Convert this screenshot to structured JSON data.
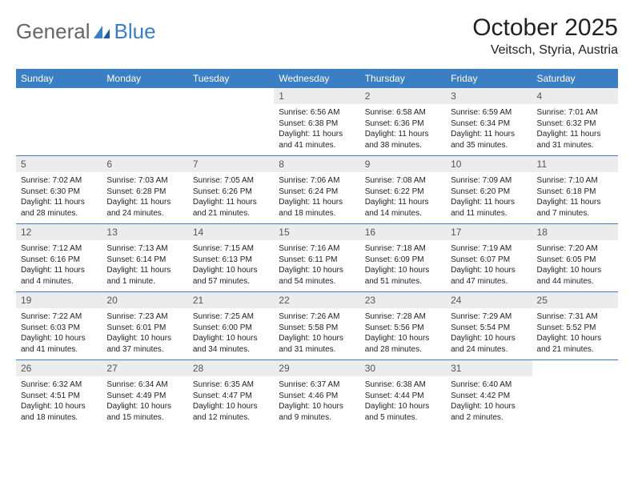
{
  "logo": {
    "text1": "General",
    "text2": "Blue"
  },
  "title": "October 2025",
  "location": "Veitsch, Styria, Austria",
  "colors": {
    "header_bg": "#3a7fc4",
    "header_text": "#ffffff",
    "daynum_bg": "#ececec",
    "border": "#3a7fc4",
    "logo_gray": "#666666",
    "logo_blue": "#3a7fc4"
  },
  "weekdays": [
    "Sunday",
    "Monday",
    "Tuesday",
    "Wednesday",
    "Thursday",
    "Friday",
    "Saturday"
  ],
  "weeks": [
    [
      {
        "day": "",
        "sunrise": "",
        "sunset": "",
        "daylight": ""
      },
      {
        "day": "",
        "sunrise": "",
        "sunset": "",
        "daylight": ""
      },
      {
        "day": "",
        "sunrise": "",
        "sunset": "",
        "daylight": ""
      },
      {
        "day": "1",
        "sunrise": "Sunrise: 6:56 AM",
        "sunset": "Sunset: 6:38 PM",
        "daylight": "Daylight: 11 hours and 41 minutes."
      },
      {
        "day": "2",
        "sunrise": "Sunrise: 6:58 AM",
        "sunset": "Sunset: 6:36 PM",
        "daylight": "Daylight: 11 hours and 38 minutes."
      },
      {
        "day": "3",
        "sunrise": "Sunrise: 6:59 AM",
        "sunset": "Sunset: 6:34 PM",
        "daylight": "Daylight: 11 hours and 35 minutes."
      },
      {
        "day": "4",
        "sunrise": "Sunrise: 7:01 AM",
        "sunset": "Sunset: 6:32 PM",
        "daylight": "Daylight: 11 hours and 31 minutes."
      }
    ],
    [
      {
        "day": "5",
        "sunrise": "Sunrise: 7:02 AM",
        "sunset": "Sunset: 6:30 PM",
        "daylight": "Daylight: 11 hours and 28 minutes."
      },
      {
        "day": "6",
        "sunrise": "Sunrise: 7:03 AM",
        "sunset": "Sunset: 6:28 PM",
        "daylight": "Daylight: 11 hours and 24 minutes."
      },
      {
        "day": "7",
        "sunrise": "Sunrise: 7:05 AM",
        "sunset": "Sunset: 6:26 PM",
        "daylight": "Daylight: 11 hours and 21 minutes."
      },
      {
        "day": "8",
        "sunrise": "Sunrise: 7:06 AM",
        "sunset": "Sunset: 6:24 PM",
        "daylight": "Daylight: 11 hours and 18 minutes."
      },
      {
        "day": "9",
        "sunrise": "Sunrise: 7:08 AM",
        "sunset": "Sunset: 6:22 PM",
        "daylight": "Daylight: 11 hours and 14 minutes."
      },
      {
        "day": "10",
        "sunrise": "Sunrise: 7:09 AM",
        "sunset": "Sunset: 6:20 PM",
        "daylight": "Daylight: 11 hours and 11 minutes."
      },
      {
        "day": "11",
        "sunrise": "Sunrise: 7:10 AM",
        "sunset": "Sunset: 6:18 PM",
        "daylight": "Daylight: 11 hours and 7 minutes."
      }
    ],
    [
      {
        "day": "12",
        "sunrise": "Sunrise: 7:12 AM",
        "sunset": "Sunset: 6:16 PM",
        "daylight": "Daylight: 11 hours and 4 minutes."
      },
      {
        "day": "13",
        "sunrise": "Sunrise: 7:13 AM",
        "sunset": "Sunset: 6:14 PM",
        "daylight": "Daylight: 11 hours and 1 minute."
      },
      {
        "day": "14",
        "sunrise": "Sunrise: 7:15 AM",
        "sunset": "Sunset: 6:13 PM",
        "daylight": "Daylight: 10 hours and 57 minutes."
      },
      {
        "day": "15",
        "sunrise": "Sunrise: 7:16 AM",
        "sunset": "Sunset: 6:11 PM",
        "daylight": "Daylight: 10 hours and 54 minutes."
      },
      {
        "day": "16",
        "sunrise": "Sunrise: 7:18 AM",
        "sunset": "Sunset: 6:09 PM",
        "daylight": "Daylight: 10 hours and 51 minutes."
      },
      {
        "day": "17",
        "sunrise": "Sunrise: 7:19 AM",
        "sunset": "Sunset: 6:07 PM",
        "daylight": "Daylight: 10 hours and 47 minutes."
      },
      {
        "day": "18",
        "sunrise": "Sunrise: 7:20 AM",
        "sunset": "Sunset: 6:05 PM",
        "daylight": "Daylight: 10 hours and 44 minutes."
      }
    ],
    [
      {
        "day": "19",
        "sunrise": "Sunrise: 7:22 AM",
        "sunset": "Sunset: 6:03 PM",
        "daylight": "Daylight: 10 hours and 41 minutes."
      },
      {
        "day": "20",
        "sunrise": "Sunrise: 7:23 AM",
        "sunset": "Sunset: 6:01 PM",
        "daylight": "Daylight: 10 hours and 37 minutes."
      },
      {
        "day": "21",
        "sunrise": "Sunrise: 7:25 AM",
        "sunset": "Sunset: 6:00 PM",
        "daylight": "Daylight: 10 hours and 34 minutes."
      },
      {
        "day": "22",
        "sunrise": "Sunrise: 7:26 AM",
        "sunset": "Sunset: 5:58 PM",
        "daylight": "Daylight: 10 hours and 31 minutes."
      },
      {
        "day": "23",
        "sunrise": "Sunrise: 7:28 AM",
        "sunset": "Sunset: 5:56 PM",
        "daylight": "Daylight: 10 hours and 28 minutes."
      },
      {
        "day": "24",
        "sunrise": "Sunrise: 7:29 AM",
        "sunset": "Sunset: 5:54 PM",
        "daylight": "Daylight: 10 hours and 24 minutes."
      },
      {
        "day": "25",
        "sunrise": "Sunrise: 7:31 AM",
        "sunset": "Sunset: 5:52 PM",
        "daylight": "Daylight: 10 hours and 21 minutes."
      }
    ],
    [
      {
        "day": "26",
        "sunrise": "Sunrise: 6:32 AM",
        "sunset": "Sunset: 4:51 PM",
        "daylight": "Daylight: 10 hours and 18 minutes."
      },
      {
        "day": "27",
        "sunrise": "Sunrise: 6:34 AM",
        "sunset": "Sunset: 4:49 PM",
        "daylight": "Daylight: 10 hours and 15 minutes."
      },
      {
        "day": "28",
        "sunrise": "Sunrise: 6:35 AM",
        "sunset": "Sunset: 4:47 PM",
        "daylight": "Daylight: 10 hours and 12 minutes."
      },
      {
        "day": "29",
        "sunrise": "Sunrise: 6:37 AM",
        "sunset": "Sunset: 4:46 PM",
        "daylight": "Daylight: 10 hours and 9 minutes."
      },
      {
        "day": "30",
        "sunrise": "Sunrise: 6:38 AM",
        "sunset": "Sunset: 4:44 PM",
        "daylight": "Daylight: 10 hours and 5 minutes."
      },
      {
        "day": "31",
        "sunrise": "Sunrise: 6:40 AM",
        "sunset": "Sunset: 4:42 PM",
        "daylight": "Daylight: 10 hours and 2 minutes."
      },
      {
        "day": "",
        "sunrise": "",
        "sunset": "",
        "daylight": ""
      }
    ]
  ]
}
